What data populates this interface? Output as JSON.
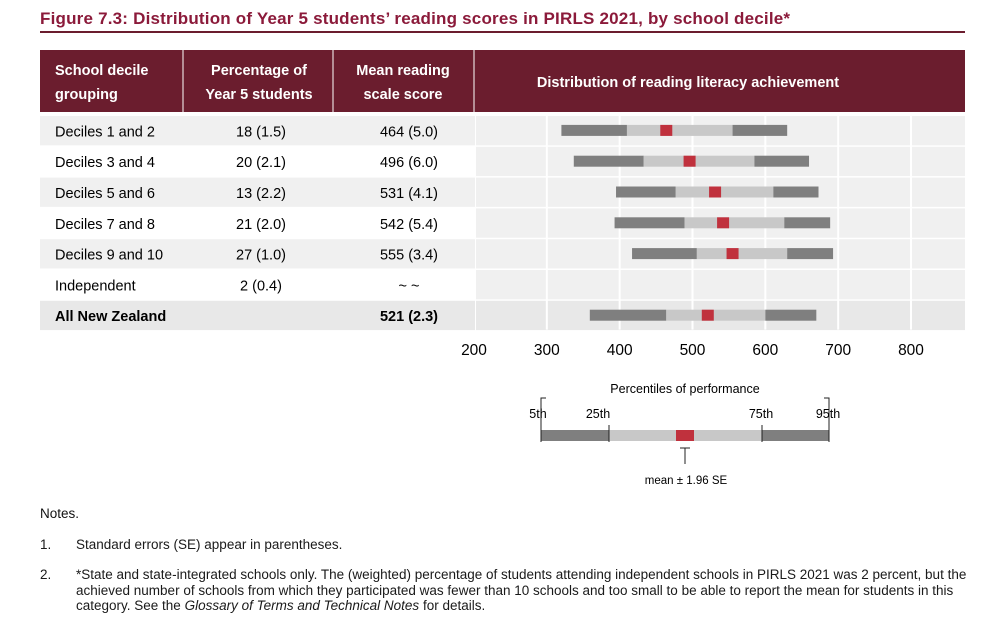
{
  "figure_title": "Figure 7.3: Distribution of Year 5 students’ reading scores in PIRLS 2021, by school decile*",
  "table": {
    "headers": {
      "group_line1": "School decile",
      "group_line2": "grouping",
      "pct_line1": "Percentage of",
      "pct_line2": "Year 5 students",
      "mean_line1": "Mean reading",
      "mean_line2": "scale score",
      "dist": "Distribution of reading literacy achievement"
    },
    "rows": [
      {
        "group": "Deciles 1 and 2",
        "pct": "18 (1.5)",
        "mean": "464 (5.0)"
      },
      {
        "group": "Deciles 3 and 4",
        "pct": "20 (2.1)",
        "mean": "496 (6.0)"
      },
      {
        "group": "Deciles 5 and 6",
        "pct": "13 (2.2)",
        "mean": "531 (4.1)"
      },
      {
        "group": "Deciles 7 and 8",
        "pct": "21 (2.0)",
        "mean": "542 (5.4)"
      },
      {
        "group": "Deciles 9 and 10",
        "pct": "27 (1.0)",
        "mean": "555 (3.4)"
      },
      {
        "group": "Independent",
        "pct": "2 (0.4)",
        "mean": "~ ~"
      },
      {
        "group": "All New Zealand",
        "pct": "",
        "mean": "521 (2.3)"
      }
    ]
  },
  "chart_data": {
    "type": "bar",
    "xlim": [
      200,
      800
    ],
    "xticks": [
      200,
      300,
      400,
      500,
      600,
      700,
      800
    ],
    "grid": true,
    "colors": {
      "header": "#6b1d2e",
      "p5_p25": "#7f7f7f",
      "p25_p75": "#c8c8c8",
      "mean_ci": "#c0313d",
      "stripe": "#f0f0f0"
    },
    "series": [
      {
        "category": "Deciles 1 and 2",
        "p5": 320,
        "p25": 410,
        "mean": 464,
        "p75": 555,
        "p95": 630
      },
      {
        "category": "Deciles 3 and 4",
        "p5": 337,
        "p25": 433,
        "mean": 496,
        "p75": 585,
        "p95": 660
      },
      {
        "category": "Deciles 5 and 6",
        "p5": 395,
        "p25": 477,
        "mean": 531,
        "p75": 611,
        "p95": 673
      },
      {
        "category": "Deciles 7 and 8",
        "p5": 393,
        "p25": 489,
        "mean": 542,
        "p75": 626,
        "p95": 689
      },
      {
        "category": "Deciles 9 and 10",
        "p5": 417,
        "p25": 506,
        "mean": 555,
        "p75": 630,
        "p95": 693
      },
      {
        "category": "Independent",
        "p5": null,
        "p25": null,
        "mean": null,
        "p75": null,
        "p95": null
      },
      {
        "category": "All New Zealand",
        "p5": 359,
        "p25": 464,
        "mean": 521,
        "p75": 600,
        "p95": 670
      }
    ]
  },
  "key": {
    "title": "Percentiles of performance",
    "p5": "5th",
    "p25": "25th",
    "p75": "75th",
    "p95": "95th",
    "mean_label": "mean ± 1.96 SE"
  },
  "notes": {
    "heading": "Notes.",
    "items": [
      {
        "num": "1.",
        "text": "Standard errors (SE) appear in parentheses."
      },
      {
        "num": "2.",
        "text_before": "*State and state-integrated schools only. The (weighted) percentage of students attending independent schools in PIRLS 2021 was 2 percent, but the achieved number of schools from which they participated was fewer than 10 schools and too small to be able to report the mean for students in this category.  See the ",
        "text_italic": "Glossary of Terms and Technical Notes",
        "text_after": " for details."
      }
    ]
  }
}
